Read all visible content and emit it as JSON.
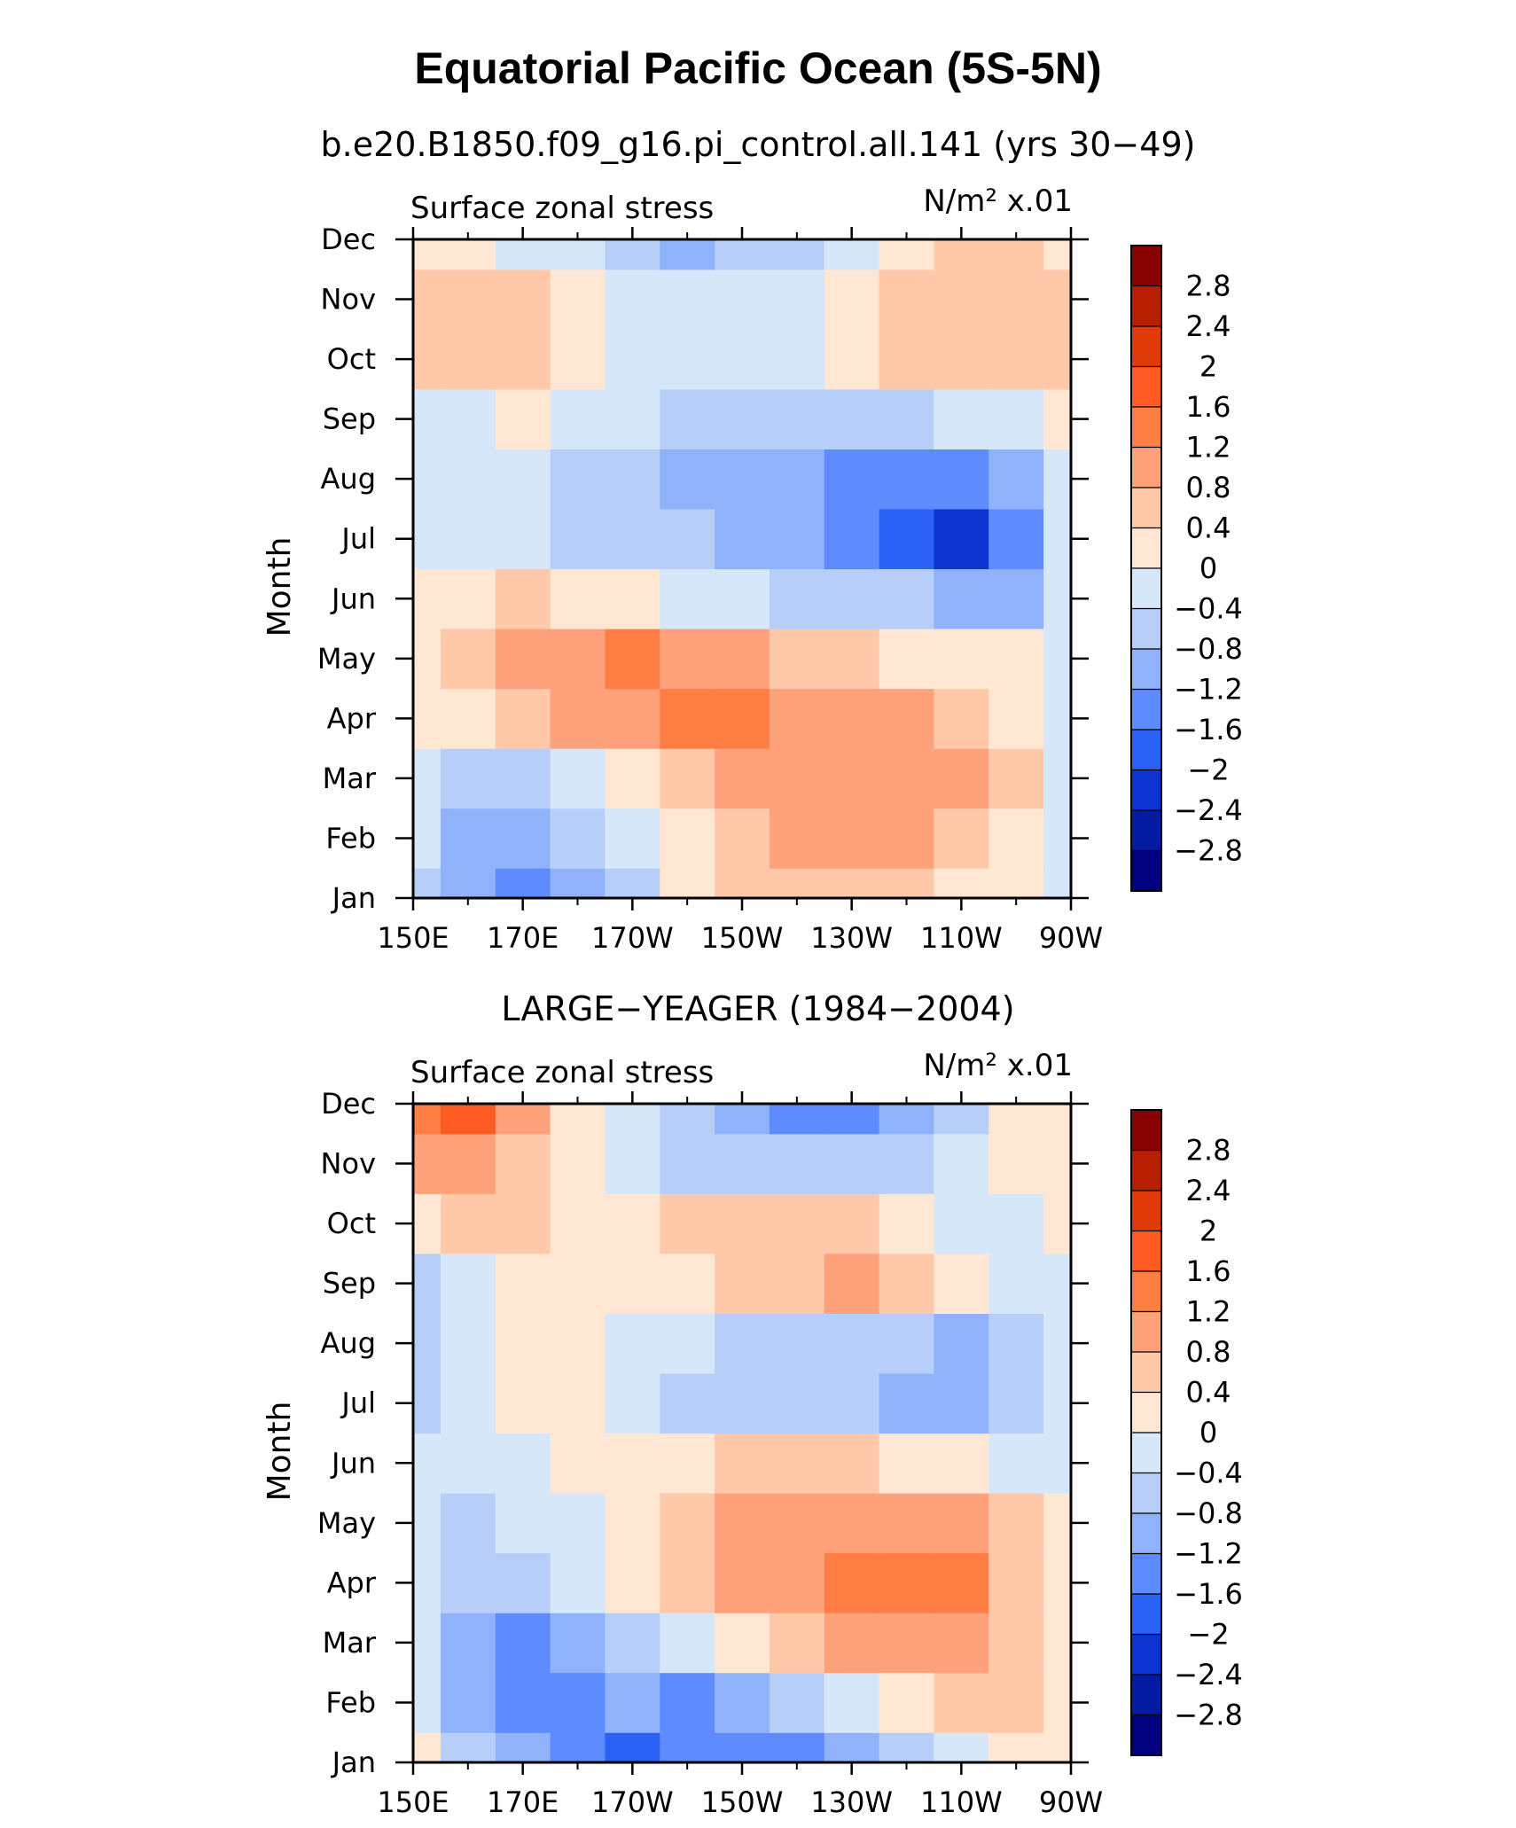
{
  "title": "Equatorial Pacific Ocean (5S-5N)",
  "colorbar": {
    "labels": [
      "2.8",
      "2.4",
      "2",
      "1.6",
      "1.2",
      "0.8",
      "0.4",
      "0",
      "−0.4",
      "−0.8",
      "−1.2",
      "−1.6",
      "−2",
      "−2.4",
      "−2.8"
    ],
    "colors": [
      "#890000",
      "#b81f00",
      "#e03a08",
      "#ff5a22",
      "#ff7e44",
      "#ffa27c",
      "#ffc8a8",
      "#ffe7d4",
      "#d7e7fa",
      "#b7cff8",
      "#8fb2fb",
      "#5e8cff",
      "#2c61f5",
      "#0d34d1",
      "#031aa3",
      "#000080"
    ]
  },
  "panels": [
    {
      "subtitle": "b.e20.B1850.f09_g16.pi_control.all.141 (yrs 30−49)",
      "left_label": "Surface zonal stress",
      "units": "N/m² x.01",
      "ylabel": "Month",
      "x_ticks": [
        "150E",
        "170E",
        "170W",
        "150W",
        "130W",
        "110W",
        "90W"
      ],
      "y_ticks": [
        "Jan",
        "Feb",
        "Mar",
        "Apr",
        "May",
        "Jun",
        "Jul",
        "Aug",
        "Sep",
        "Oct",
        "Nov",
        "Dec"
      ]
    },
    {
      "subtitle": "LARGE−YEAGER (1984−2004)",
      "left_label": "Surface zonal stress",
      "units": "N/m² x.01",
      "ylabel": "Month",
      "x_ticks": [
        "150E",
        "170E",
        "170W",
        "150W",
        "130W",
        "110W",
        "90W"
      ],
      "y_ticks": [
        "Jan",
        "Feb",
        "Mar",
        "Apr",
        "May",
        "Jun",
        "Jul",
        "Aug",
        "Sep",
        "Oct",
        "Nov",
        "Dec"
      ]
    }
  ],
  "chart_data": [
    {
      "type": "heatmap",
      "title": "b.e20.B1850.f09_g16.pi_control.all.141 (yrs 30−49)",
      "xlabel": "",
      "ylabel": "Month",
      "units": "N/m² x.01",
      "x": [
        150,
        160,
        170,
        180,
        190,
        200,
        210,
        220,
        230,
        240,
        250,
        260,
        270
      ],
      "x_tick_labels": [
        "150E",
        "170E",
        "170W",
        "150W",
        "130W",
        "110W",
        "90W"
      ],
      "y": [
        "Jan",
        "Feb",
        "Mar",
        "Apr",
        "May",
        "Jun",
        "Jul",
        "Aug",
        "Sep",
        "Oct",
        "Nov",
        "Dec"
      ],
      "contour_levels": [
        -2.8,
        -2.4,
        -2,
        -1.6,
        -1.2,
        -0.8,
        -0.4,
        0,
        0.4,
        0.8,
        1.2,
        1.6,
        2,
        2.4,
        2.8
      ],
      "z": [
        [
          -0.6,
          -1.0,
          -1.3,
          -1.2,
          -0.6,
          0.1,
          0.4,
          0.6,
          0.6,
          0.5,
          0.3,
          0.2,
          -0.3
        ],
        [
          -0.4,
          -1.1,
          -1.0,
          -0.6,
          -0.2,
          0.3,
          0.6,
          0.9,
          1.0,
          0.9,
          0.6,
          0.3,
          -0.2
        ],
        [
          -0.3,
          -0.7,
          -0.5,
          -0.1,
          0.3,
          0.7,
          0.9,
          1.0,
          1.1,
          1.0,
          0.9,
          0.5,
          -0.1
        ],
        [
          0.1,
          0.2,
          0.5,
          0.8,
          1.0,
          1.3,
          1.2,
          1.1,
          1.0,
          0.9,
          0.7,
          0.3,
          -0.1
        ],
        [
          0.2,
          0.5,
          0.9,
          1.1,
          1.3,
          1.1,
          0.8,
          0.6,
          0.4,
          0.3,
          0.2,
          0.1,
          -0.1
        ],
        [
          0.2,
          0.3,
          0.4,
          0.3,
          0.1,
          -0.2,
          -0.4,
          -0.6,
          -0.7,
          -0.8,
          -0.9,
          -0.9,
          -0.3
        ],
        [
          -0.2,
          -0.2,
          -0.3,
          -0.5,
          -0.6,
          -0.8,
          -0.9,
          -1.0,
          -1.4,
          -1.9,
          -2.1,
          -1.4,
          -0.4
        ],
        [
          -0.2,
          -0.2,
          -0.2,
          -0.5,
          -0.8,
          -1.0,
          -1.0,
          -1.1,
          -1.5,
          -1.6,
          -1.5,
          -1.0,
          -0.3
        ],
        [
          -0.1,
          -0.2,
          0.1,
          -0.2,
          -0.3,
          -0.5,
          -0.6,
          -0.6,
          -0.6,
          -0.5,
          -0.4,
          -0.2,
          0.1
        ],
        [
          0.5,
          0.5,
          0.4,
          0.1,
          -0.1,
          -0.2,
          -0.2,
          -0.1,
          0.1,
          0.4,
          0.5,
          0.5,
          0.5
        ],
        [
          0.6,
          0.6,
          0.5,
          0.2,
          -0.1,
          -0.3,
          -0.3,
          -0.1,
          0.1,
          0.5,
          0.6,
          0.6,
          0.4
        ],
        [
          0.3,
          0.2,
          -0.1,
          -0.4,
          -0.6,
          -0.9,
          -0.8,
          -0.5,
          -0.2,
          0.2,
          0.5,
          0.5,
          0.3
        ]
      ]
    },
    {
      "type": "heatmap",
      "title": "LARGE−YEAGER (1984−2004)",
      "xlabel": "",
      "ylabel": "Month",
      "units": "N/m² x.01",
      "x": [
        150,
        160,
        170,
        180,
        190,
        200,
        210,
        220,
        230,
        240,
        250,
        260,
        270
      ],
      "x_tick_labels": [
        "150E",
        "170E",
        "170W",
        "150W",
        "130W",
        "110W",
        "90W"
      ],
      "y": [
        "Jan",
        "Feb",
        "Mar",
        "Apr",
        "May",
        "Jun",
        "Jul",
        "Aug",
        "Sep",
        "Oct",
        "Nov",
        "Dec"
      ],
      "contour_levels": [
        -2.8,
        -2.4,
        -2,
        -1.6,
        -1.2,
        -0.8,
        -0.4,
        0,
        0.4,
        0.8,
        1.2,
        1.6,
        2,
        2.4,
        2.8
      ],
      "z": [
        [
          0.1,
          -0.5,
          -1.0,
          -1.4,
          -1.7,
          -1.6,
          -1.6,
          -1.5,
          -1.2,
          -0.8,
          -0.3,
          0.1,
          0.1
        ],
        [
          -0.2,
          -0.9,
          -1.3,
          -1.4,
          -1.2,
          -1.3,
          -1.0,
          -0.6,
          -0.2,
          0.2,
          0.5,
          0.5,
          0.1
        ],
        [
          -0.3,
          -1.0,
          -1.3,
          -1.1,
          -0.5,
          -0.2,
          0.3,
          0.7,
          0.9,
          1.0,
          0.9,
          0.6,
          0.1
        ],
        [
          -0.3,
          -0.7,
          -0.8,
          -0.3,
          0.1,
          0.6,
          1.0,
          1.1,
          1.3,
          1.4,
          1.2,
          0.6,
          0.1
        ],
        [
          -0.2,
          -0.5,
          -0.4,
          -0.1,
          0.2,
          0.6,
          0.8,
          1.0,
          1.0,
          1.1,
          0.9,
          0.5,
          0.1
        ],
        [
          -0.3,
          -0.3,
          -0.2,
          0.1,
          0.3,
          0.3,
          0.4,
          0.5,
          0.4,
          0.3,
          0.1,
          -0.2,
          -0.2
        ],
        [
          -0.5,
          -0.3,
          0.1,
          0.1,
          -0.3,
          -0.5,
          -0.6,
          -0.7,
          -0.7,
          -0.9,
          -1.0,
          -0.7,
          -0.2
        ],
        [
          -0.7,
          -0.4,
          0.1,
          0.1,
          -0.1,
          -0.3,
          -0.5,
          -0.7,
          -0.5,
          -0.7,
          -1.1,
          -0.6,
          -0.2
        ],
        [
          -0.5,
          -0.3,
          0.1,
          0.2,
          0.2,
          0.3,
          0.6,
          0.7,
          0.8,
          0.5,
          0.1,
          -0.3,
          -0.1
        ],
        [
          0.3,
          0.5,
          0.5,
          0.1,
          0.1,
          0.5,
          0.6,
          0.7,
          0.6,
          0.2,
          -0.2,
          -0.2,
          0.1
        ],
        [
          1.0,
          0.9,
          0.4,
          0.1,
          -0.2,
          -0.5,
          -0.6,
          -0.7,
          -0.8,
          -0.6,
          -0.3,
          0.0,
          0.2
        ],
        [
          1.4,
          1.7,
          0.8,
          0.2,
          -0.4,
          -0.8,
          -1.0,
          -1.3,
          -1.6,
          -1.1,
          -0.5,
          0.1,
          0.1
        ]
      ]
    }
  ]
}
